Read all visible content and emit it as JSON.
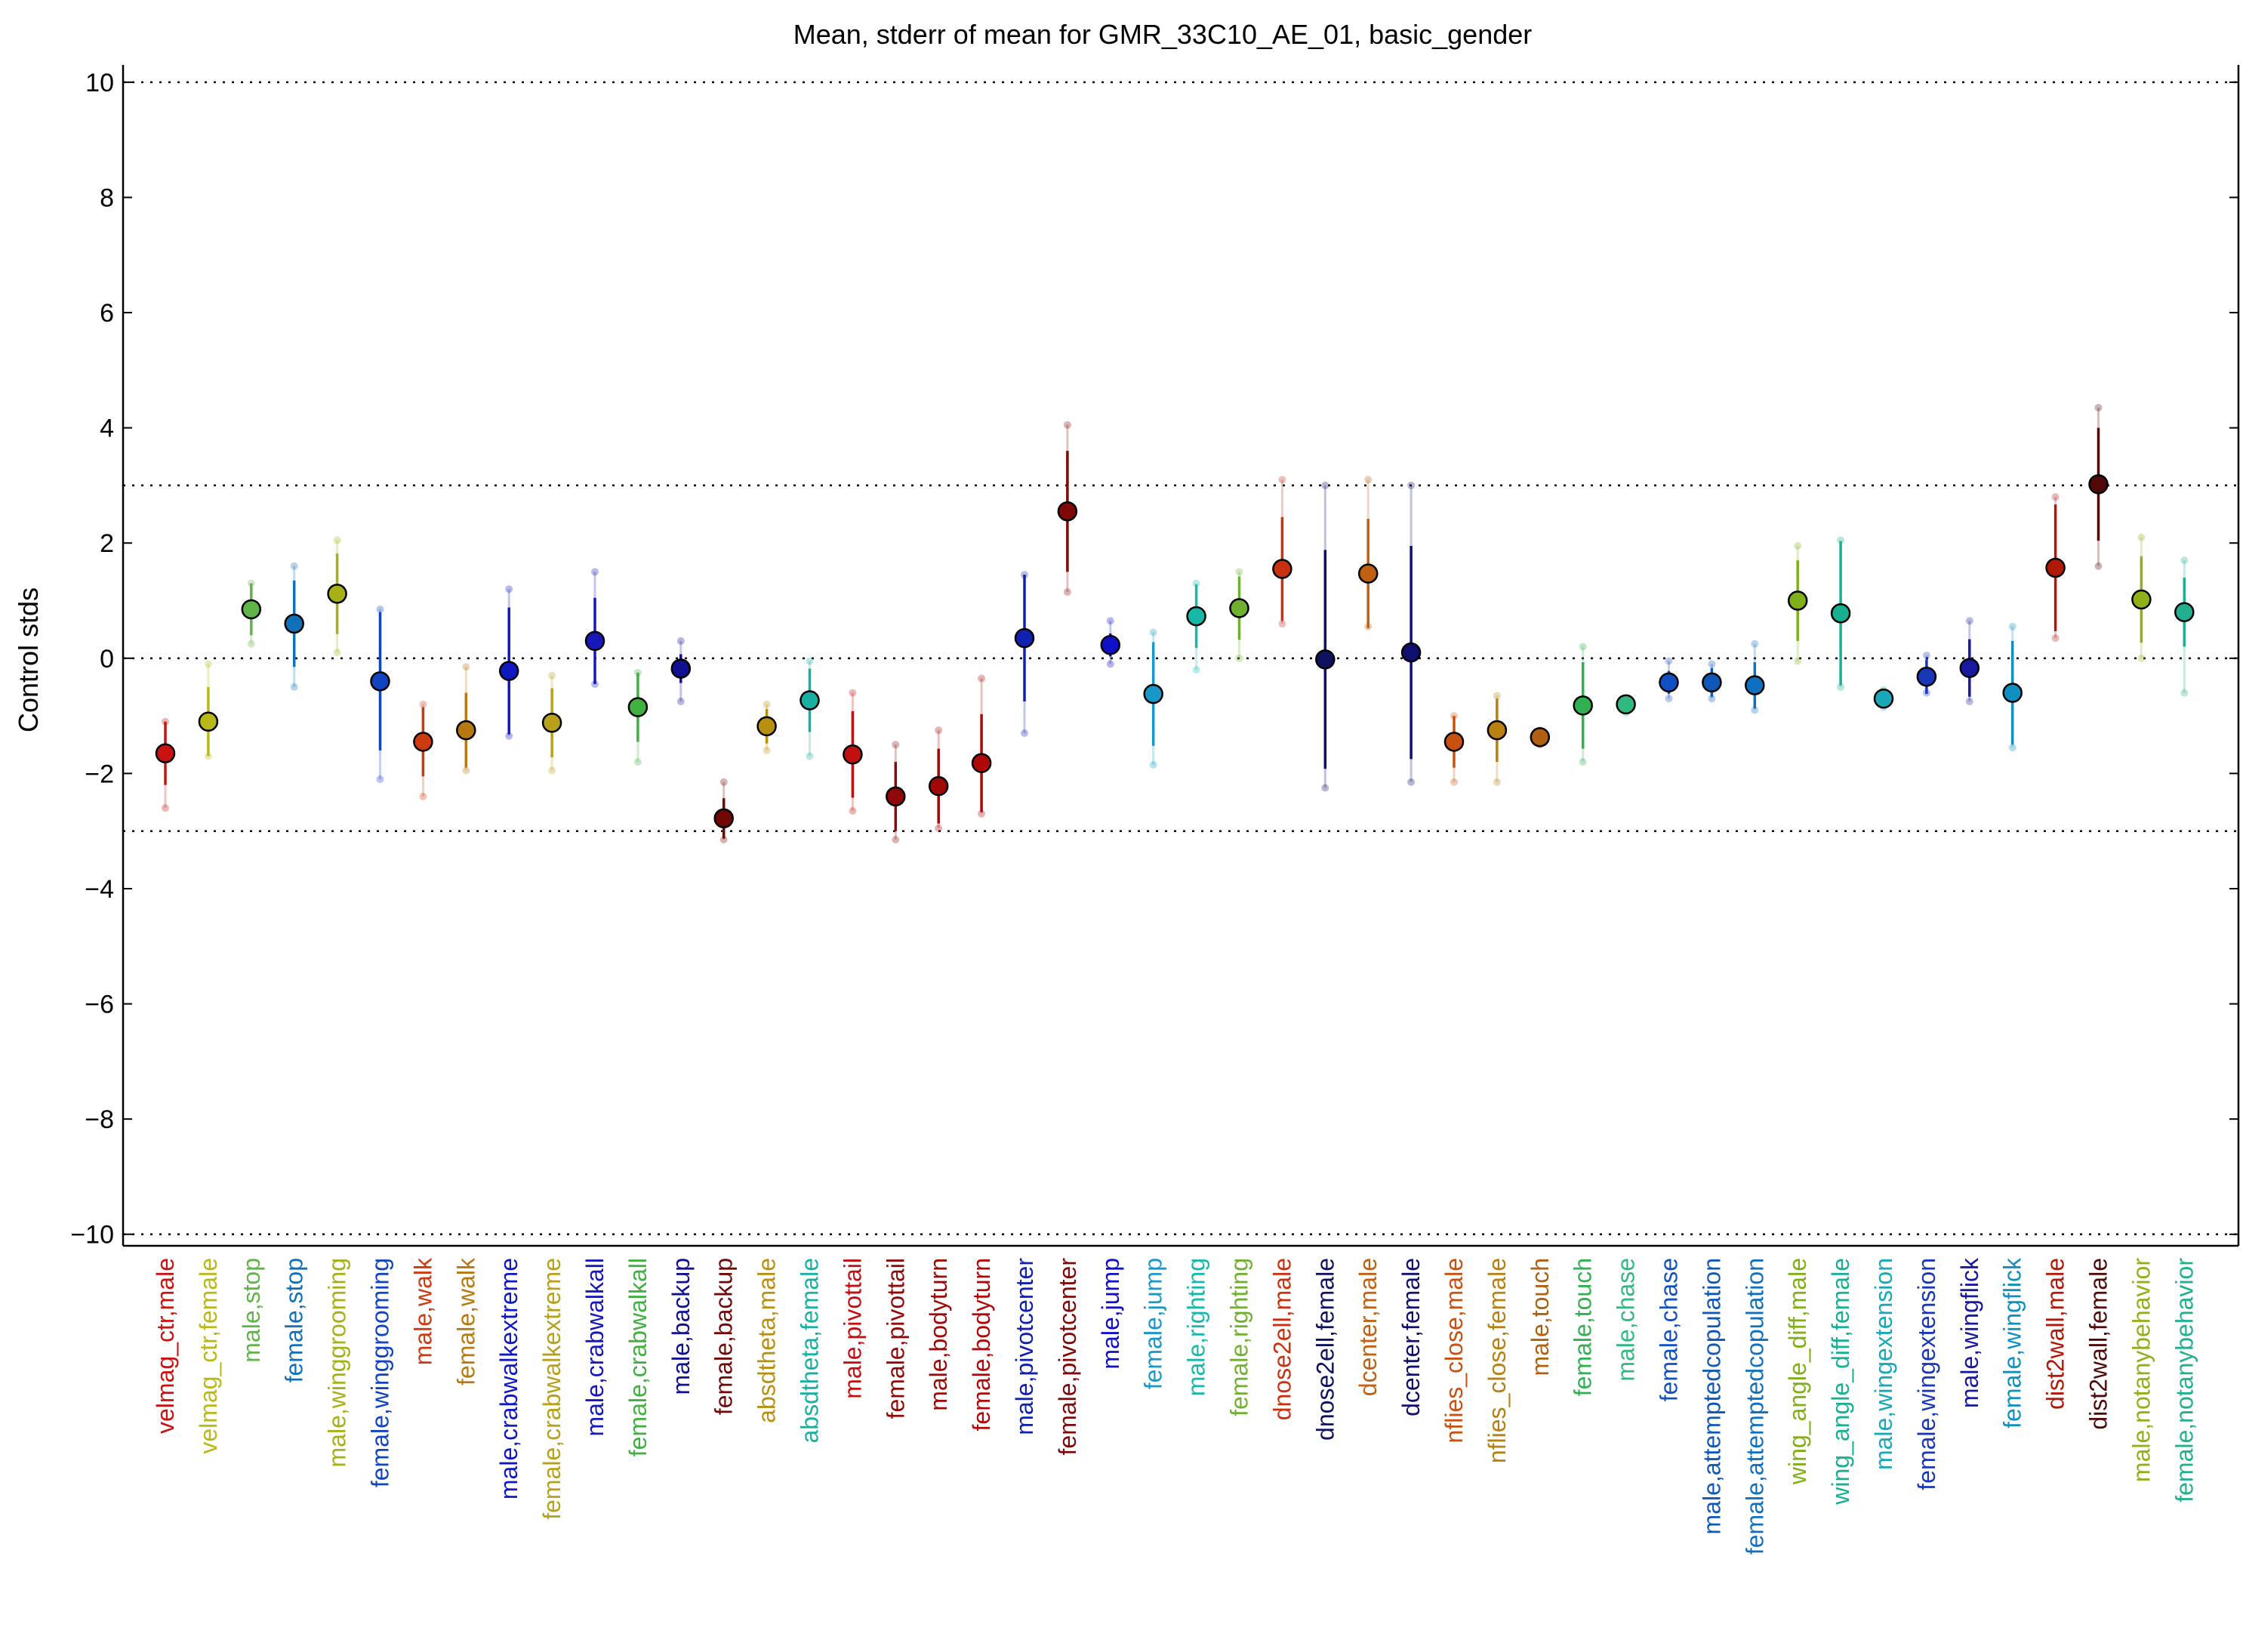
{
  "chart_data": {
    "type": "scatter",
    "title": "Mean, stderr of mean for GMR_33C10_AE_01, basic_gender",
    "xlabel": "",
    "ylabel": "Control stds",
    "ylim": [
      -10.2,
      10.3
    ],
    "yticks": [
      10,
      8,
      6,
      4,
      2,
      0,
      -2,
      -4,
      -6,
      -8,
      -10
    ],
    "ytick_labels": [
      "10",
      "8",
      "6",
      "4",
      "2",
      "0",
      "−2",
      "−4",
      "−6",
      "−8",
      "−10"
    ],
    "reference_lines": [
      10,
      3,
      0,
      -3,
      -10
    ],
    "grid": false,
    "legend": "none",
    "categories": [
      "velmag_ctr,male",
      "velmag_ctr,female",
      "male,stop",
      "female,stop",
      "male,winggrooming",
      "female,winggrooming",
      "male,walk",
      "female,walk",
      "male,crabwalkextreme",
      "female,crabwalkextreme",
      "male,crabwalkall",
      "female,crabwalkall",
      "male,backup",
      "female,backup",
      "absdtheta,male",
      "absdtheta,female",
      "male,pivottail",
      "female,pivottail",
      "male,bodyturn",
      "female,bodyturn",
      "male,pivotcenter",
      "female,pivotcenter",
      "male,jump",
      "female,jump",
      "male,righting",
      "female,righting",
      "dnose2ell,male",
      "dnose2ell,female",
      "dcenter,male",
      "dcenter,female",
      "nflies_close,male",
      "nflies_close,female",
      "male,touch",
      "female,touch",
      "male,chase",
      "female,chase",
      "male,attemptedcopulation",
      "female,attemptedcopulation",
      "wing_angle_diff,male",
      "wing_angle_diff,female",
      "male,wingextension",
      "female,wingextension",
      "male,wingflick",
      "female,wingflick",
      "dist2wall,male",
      "dist2wall,female",
      "male,notanybehavior",
      "female,notanybehavior"
    ],
    "means": [
      -1.65,
      -1.1,
      0.85,
      0.6,
      1.12,
      -0.4,
      -1.45,
      -1.25,
      -0.22,
      -1.12,
      0.3,
      -0.85,
      -0.18,
      -2.78,
      -1.18,
      -0.73,
      -1.67,
      -2.4,
      -2.22,
      -1.82,
      0.35,
      2.55,
      0.23,
      -0.62,
      0.73,
      0.87,
      1.55,
      -0.02,
      1.47,
      0.1,
      -1.45,
      -1.25,
      -1.37,
      -0.82,
      -0.8,
      -0.42,
      -0.42,
      -0.47,
      1.0,
      0.78,
      -0.7,
      -0.32,
      -0.17,
      -0.6,
      1.57,
      3.02,
      1.02,
      0.8
    ],
    "stderr": [
      0.55,
      0.6,
      0.45,
      0.75,
      0.7,
      1.2,
      0.6,
      0.65,
      1.1,
      0.6,
      0.75,
      0.6,
      0.25,
      0.35,
      0.3,
      0.55,
      0.75,
      0.6,
      0.65,
      0.85,
      1.1,
      1.05,
      0.2,
      0.9,
      0.55,
      0.55,
      0.9,
      1.9,
      0.95,
      1.85,
      0.45,
      0.55,
      0.1,
      0.75,
      0.1,
      0.2,
      0.25,
      0.4,
      0.7,
      1.25,
      0.12,
      0.3,
      0.5,
      0.9,
      1.1,
      0.98,
      0.75,
      0.6
    ],
    "range_low": [
      -2.6,
      -1.7,
      0.25,
      -0.5,
      0.1,
      -2.1,
      -2.4,
      -1.95,
      -1.35,
      -1.95,
      -0.45,
      -1.8,
      -0.75,
      -3.15,
      -1.6,
      -1.7,
      -2.65,
      -3.15,
      -2.95,
      -2.7,
      -1.3,
      1.15,
      -0.1,
      -1.85,
      -0.2,
      0.0,
      0.6,
      -2.25,
      0.55,
      -2.15,
      -2.15,
      -2.15,
      -1.5,
      -1.8,
      -0.95,
      -0.7,
      -0.7,
      -0.9,
      -0.05,
      -0.5,
      -0.85,
      -0.6,
      -0.75,
      -1.55,
      0.35,
      1.6,
      0.0,
      -0.6
    ],
    "range_high": [
      -1.1,
      -0.1,
      1.3,
      1.6,
      2.05,
      0.85,
      -0.8,
      -0.15,
      1.2,
      -0.3,
      1.5,
      -0.25,
      0.3,
      -2.15,
      -0.8,
      -0.05,
      -0.6,
      -1.5,
      -1.25,
      -0.35,
      1.45,
      4.05,
      0.65,
      0.45,
      1.3,
      1.5,
      3.1,
      3.0,
      3.1,
      3.0,
      -1.0,
      -0.65,
      -1.25,
      0.2,
      -0.7,
      -0.05,
      -0.1,
      0.25,
      1.95,
      2.05,
      -0.55,
      0.05,
      0.65,
      0.55,
      2.8,
      4.35,
      2.1,
      1.7
    ],
    "colors": [
      "#cc1111",
      "#b8b818",
      "#5fb548",
      "#1170b8",
      "#a8b018",
      "#1044c0",
      "#cc3a10",
      "#b87810",
      "#1018c0",
      "#b8a018",
      "#1818b8",
      "#40b040",
      "#101090",
      "#700808",
      "#b89010",
      "#18b0a0",
      "#c01010",
      "#900808",
      "#a00808",
      "#b00808",
      "#1020b0",
      "#800808",
      "#1010c8",
      "#1898c8",
      "#18b8a8",
      "#70b030",
      "#c83010",
      "#101060",
      "#c06010",
      "#101070",
      "#c85010",
      "#b88010",
      "#b06010",
      "#30b050",
      "#30b880",
      "#1050c0",
      "#1058b8",
      "#1070c0",
      "#80b018",
      "#18b090",
      "#18a8b8",
      "#1838b8",
      "#1818a0",
      "#1090c0",
      "#b01808",
      "#500808",
      "#90b018",
      "#20b090"
    ]
  }
}
